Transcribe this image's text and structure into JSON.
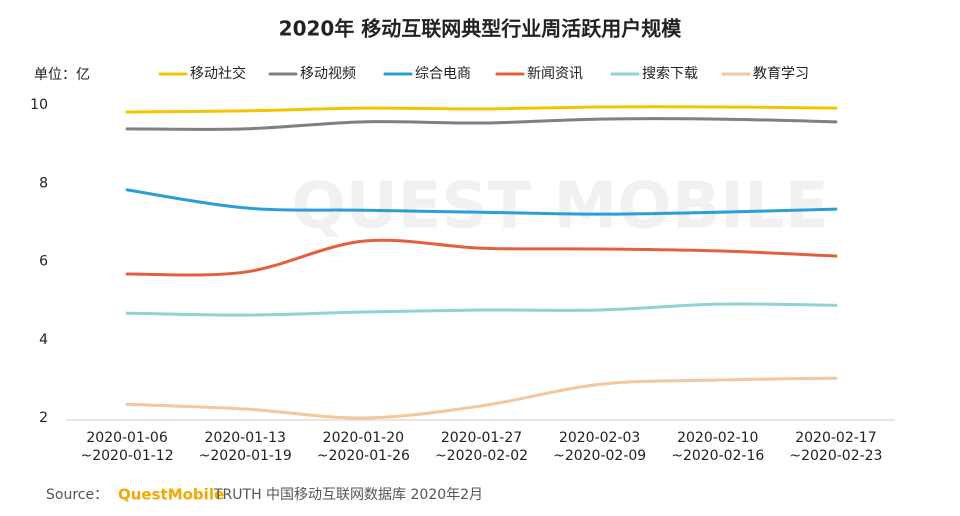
{
  "chart_data": {
    "type": "line",
    "title": "2020年 移动互联网典型行业周活跃用户规模",
    "y_axis_label": "单位：亿",
    "watermark": "QUEST MOBILE",
    "source": {
      "prefix": "Source：",
      "brand": "QuestMobile",
      "text": "TRUTH 中国移动互联网数据库 2020年2月"
    },
    "categories": [
      [
        "2020-01-06",
        "~2020-01-12"
      ],
      [
        "2020-01-13",
        "~2020-01-19"
      ],
      [
        "2020-01-20",
        "~2020-01-26"
      ],
      [
        "2020-01-27",
        "~2020-02-02"
      ],
      [
        "2020-02-03",
        "~2020-02-09"
      ],
      [
        "2020-02-10",
        "~2020-02-16"
      ],
      [
        "2020-02-17",
        "~2020-02-23"
      ]
    ],
    "series": [
      {
        "name": "移动社交",
        "color": "#f5c400",
        "values": [
          9.82,
          9.85,
          9.92,
          9.9,
          9.95,
          9.95,
          9.92
        ]
      },
      {
        "name": "移动视频",
        "color": "#808080",
        "values": [
          9.39,
          9.39,
          9.57,
          9.54,
          9.64,
          9.64,
          9.57
        ]
      },
      {
        "name": "综合电商",
        "color": "#2a9fd6",
        "values": [
          7.83,
          7.37,
          7.31,
          7.26,
          7.21,
          7.26,
          7.34
        ]
      },
      {
        "name": "新闻资讯",
        "color": "#e2613b",
        "values": [
          5.68,
          5.73,
          6.52,
          6.34,
          6.32,
          6.27,
          6.14
        ]
      },
      {
        "name": "搜索下载",
        "color": "#8fd3d3",
        "values": [
          4.68,
          4.63,
          4.71,
          4.76,
          4.76,
          4.91,
          4.88
        ]
      },
      {
        "name": "教育学习",
        "color": "#f5c79c",
        "values": [
          2.35,
          2.23,
          2.0,
          2.31,
          2.86,
          2.97,
          3.02
        ]
      }
    ],
    "ylim": [
      2,
      10
    ],
    "yticks": [
      2,
      4,
      6,
      8,
      10
    ],
    "grid": false
  }
}
